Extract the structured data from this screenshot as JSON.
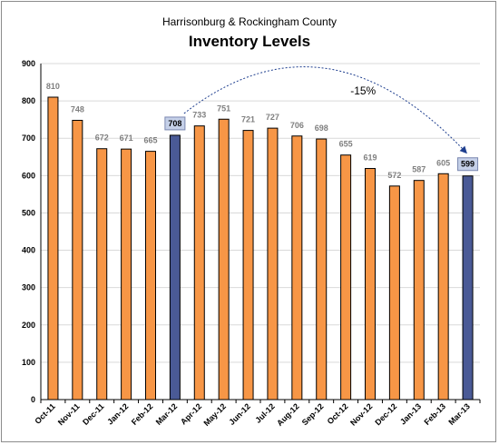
{
  "chart_data": {
    "type": "bar",
    "subtitle": "Harrisonburg & Rockingham County",
    "title": "Inventory Levels",
    "categories": [
      "Oct-11",
      "Nov-11",
      "Dec-11",
      "Jan-12",
      "Feb-12",
      "Mar-12",
      "Apr-12",
      "May-12",
      "Jun-12",
      "Jul-12",
      "Aug-12",
      "Sep-12",
      "Oct-12",
      "Nov-12",
      "Dec-12",
      "Jan-13",
      "Feb-13",
      "Mar-13"
    ],
    "values": [
      810,
      748,
      672,
      671,
      665,
      708,
      733,
      751,
      721,
      727,
      706,
      698,
      655,
      619,
      572,
      587,
      605,
      599
    ],
    "highlighted_categories": [
      "Mar-12",
      "Mar-13"
    ],
    "ylim": [
      0,
      900
    ],
    "yticks": [
      0,
      100,
      200,
      300,
      400,
      500,
      600,
      700,
      800,
      900
    ],
    "grid": true,
    "annotation": {
      "text": "-15%",
      "from": "Mar-12",
      "to": "Mar-13"
    },
    "colors": {
      "bar": "#f79646",
      "bar_highlight": "#4a5a96",
      "highlight_label_bg": "#c5d0e8",
      "grid": "#d9d9d9",
      "arrow": "#1f3f8f"
    }
  }
}
